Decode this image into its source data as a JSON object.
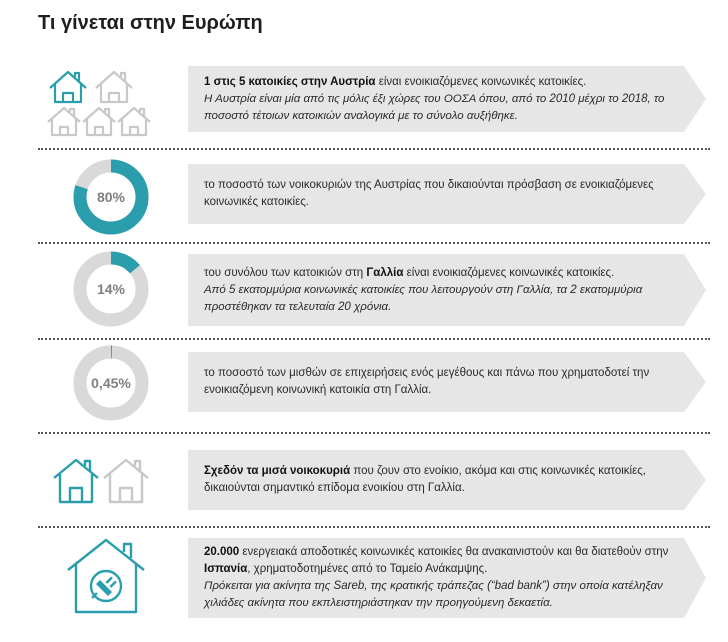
{
  "title": "Τι γίνεται στην Ευρώπη",
  "colors": {
    "accent": "#2a9eac",
    "house_gray": "#c8c8c8",
    "ring_gray": "#d9d9d9",
    "box": "#e6e6e6"
  },
  "rows": [
    {
      "graphic": "houses-icon-grid",
      "bold": "1 στις 5 κατοικίες στην Αυστρία",
      "text": " είναι ενοικιαζόμενες κοινωνικές κατοικίες.",
      "italic": "Η Αυστρία είναι μία από τις μόλις έξι χώρες του ΟΟΣΑ όπου, από το 2010 μέχρι το 2018, το ποσοστό τέτοιων κατοικιών αναλογικά με το σύνολο αυξήθηκε."
    },
    {
      "graphic": "donut",
      "label": "80%",
      "text": "το ποσοστό των νοικοκυριών της Αυστρίας που δικαιούνται πρόσβαση σε ενοικιαζόμενες κοινωνικές κατοικίες."
    },
    {
      "graphic": "donut",
      "label": "14%",
      "text_before": "του συνόλου των κατοικιών στη ",
      "bold": "Γαλλία",
      "text_after": " είναι ενοικιαζόμενες κοινωνικές κατοικίες.",
      "italic": "Από 5 εκατομμύρια κοινωνικές κατοικίες που λειτουργούν στη Γαλλία, τα 2 εκατομμύρια προστέθηκαν τα τελευταία 20 χρόνια."
    },
    {
      "graphic": "donut",
      "label": "0,45%",
      "text": "το ποσοστό των μισθών σε επιχειρήσεις ενός μεγέθους και πάνω που χρηματοδοτεί την ενοικιαζόμενη κοινωνική κατοικία στη Γαλλία."
    },
    {
      "graphic": "two-houses-icon",
      "bold": "Σχεδόν τα μισά νοικοκυριά",
      "text": " που ζουν στο ενοίκιο, ακόμα και στις κοινωνικές κατοικίες, δικαιούνται σημαντικό επίδομα ενοικίου στη Γαλλία."
    },
    {
      "graphic": "eco-house-plug-icon",
      "bold": "20.000",
      "text_before": " ενεργειακά αποδοτικές κοινωνικές κατοικίες θα ανακαινιστούν και θα διατεθούν στην ",
      "bold2": "Ισπανία",
      "text_after": ", χρηματοδοτημένες από το Ταμείο Ανάκαμψης.",
      "italic": "Πρόκειται για ακίνητα της Sareb, της κρατικής τράπεζας (“bad bank”) στην οποία κατέληξαν χιλιάδες ακίνητα που εκπλειστηριάστηκαν την προηγούμενη δεκαετία."
    }
  ],
  "chart_data": {
    "type": "donut",
    "items": [
      {
        "label": "80%",
        "value": 80,
        "unit": "%"
      },
      {
        "label": "14%",
        "value": 14,
        "unit": "%"
      },
      {
        "label": "0,45%",
        "value": 0.45,
        "unit": "%"
      }
    ]
  }
}
